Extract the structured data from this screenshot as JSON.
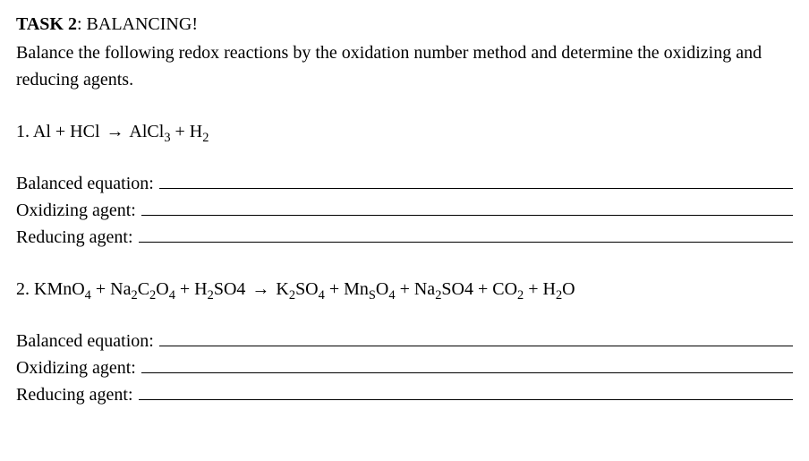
{
  "task": {
    "label": "TASK 2",
    "title": ": BALANCING!",
    "instructions": "Balance the following redox reactions by the oxidation number method and determine the oxidizing and reducing agents."
  },
  "labels": {
    "balanced": "Balanced equation:",
    "oxidizing": "Oxidizing agent:",
    "reducing": "Reducing agent:"
  },
  "q1": {
    "num": "1. ",
    "t1": "Al + HCl ",
    "arrow": "→",
    "t2": " AlCl",
    "s1": "3",
    "t3": " + H",
    "s2": "2"
  },
  "q2": {
    "num": "2. ",
    "t1": "KMnO",
    "s1": "4",
    "t2": " + Na",
    "s2": "2",
    "t3": "C",
    "s3": "2",
    "t4": "O",
    "s4": "4",
    "t5": " + H",
    "s5": "2",
    "t6": "SO4 ",
    "arrow": "→",
    "t7": " K",
    "s7": "2",
    "t8": "SO",
    "s8": "4",
    "t9": " + Mn",
    "s9": "S",
    "t10": "O",
    "s10": "4",
    "t11": " + Na",
    "s11": "2",
    "t12": "SO4 + CO",
    "s12": "2",
    "t13": " + H",
    "s13": "2",
    "t14": "O"
  },
  "style": {
    "font_family": "Times New Roman",
    "font_size_pt": 15,
    "text_color": "#000000",
    "background": "#ffffff",
    "underline_color": "#000000"
  }
}
